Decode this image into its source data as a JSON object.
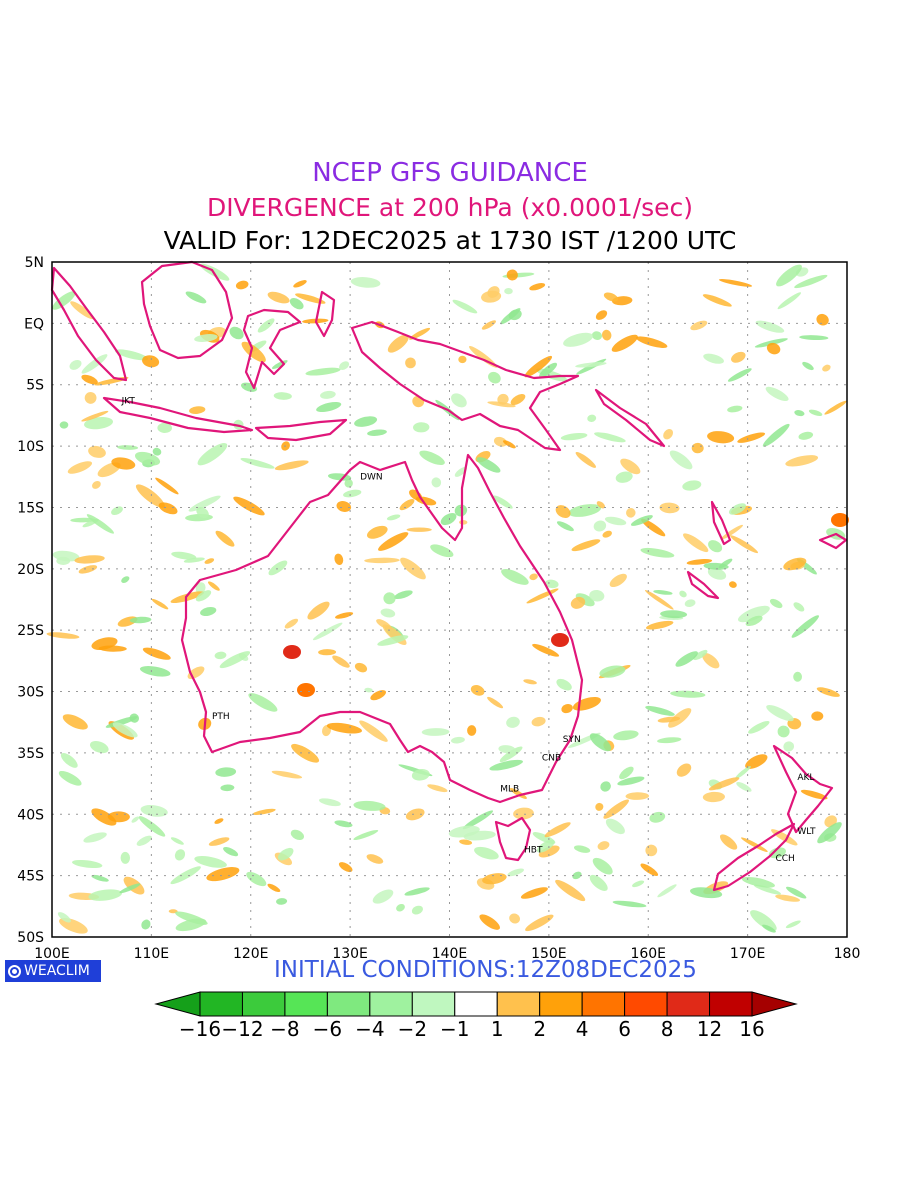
{
  "header": {
    "line1": "NCEP GFS GUIDANCE",
    "line2": "DIVERGENCE at 200 hPa (x0.0001/sec)",
    "line3": "VALID For: 12DEC2025 at 1730 IST /1200 UTC",
    "line1_color": "#8a2be2",
    "line2_color": "#e0167a"
  },
  "map": {
    "lon_range": [
      100,
      180
    ],
    "lat_range": [
      -50,
      5
    ],
    "lon_ticks": [
      "100E",
      "110E",
      "120E",
      "130E",
      "140E",
      "150E",
      "160E",
      "170E",
      "180"
    ],
    "lat_ticks": [
      "5N",
      "EQ",
      "5S",
      "10S",
      "15S",
      "20S",
      "25S",
      "30S",
      "35S",
      "40S",
      "45S",
      "50S"
    ],
    "coast_color": "#e0167a",
    "grid": true,
    "cities": [
      {
        "label": "JKT",
        "lon": 106.8,
        "lat": -6.2
      },
      {
        "label": "DWN",
        "lon": 130.8,
        "lat": -12.4
      },
      {
        "label": "PTH",
        "lon": 115.9,
        "lat": -31.9
      },
      {
        "label": "SYN",
        "lon": 151.2,
        "lat": -33.8
      },
      {
        "label": "CNB",
        "lon": 149.1,
        "lat": -35.3
      },
      {
        "label": "MLB",
        "lon": 144.9,
        "lat": -37.8
      },
      {
        "label": "HBT",
        "lon": 147.3,
        "lat": -42.8
      },
      {
        "label": "AKL",
        "lon": 174.8,
        "lat": -36.9
      },
      {
        "label": "WLT",
        "lon": 174.8,
        "lat": -41.3
      },
      {
        "label": "CCH",
        "lon": 172.6,
        "lat": -43.5
      }
    ]
  },
  "footer": {
    "logo_text": "WEACLIM",
    "logo_icon": "weaclim-logo-icon",
    "initial": "INITIAL CONDITIONS:12Z08DEC2025",
    "initial_color": "#3a5ae0"
  },
  "colorbar": {
    "labels": [
      "-16",
      "-12",
      "-8",
      "-6",
      "-4",
      "-2",
      "-1",
      "1",
      "2",
      "4",
      "6",
      "8",
      "12",
      "16"
    ],
    "colors": [
      "#15a01a",
      "#22b624",
      "#3ccb3c",
      "#56e556",
      "#7fe97f",
      "#9ff29f",
      "#bff7bf",
      "#ffffff",
      "#ffc14d",
      "#ffa10a",
      "#ff7400",
      "#ff4a00",
      "#e02a18",
      "#c00000",
      "#a50000"
    ]
  }
}
